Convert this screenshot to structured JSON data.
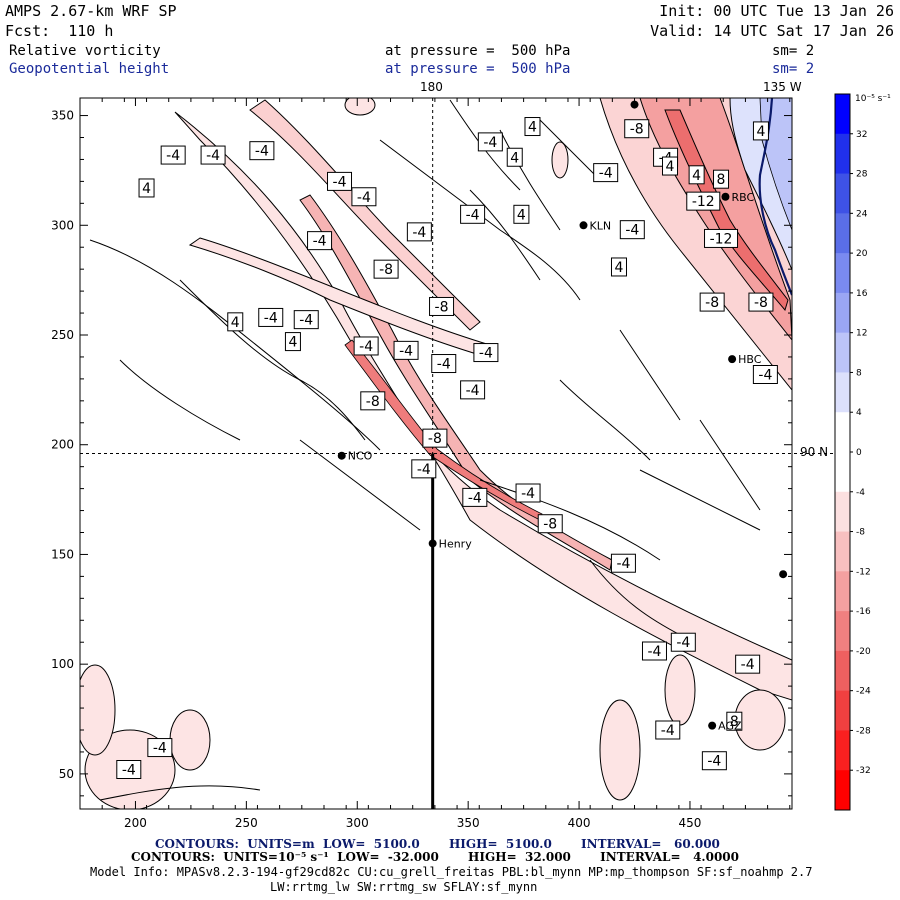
{
  "header": {
    "model_title": "AMPS 2.67-km WRF SP",
    "forecast": "Fcst:  110 h",
    "init": "Init: 00 UTC Tue 13 Jan 26",
    "valid": "Valid: 14 UTC Sat 17 Jan 26",
    "field1": {
      "name": "Relative vorticity",
      "level": "at pressure =  500 hPa",
      "smooth": "sm= 2"
    },
    "field2": {
      "name": "Geopotential height",
      "level": "at pressure =  500 hPa",
      "smooth": "sm= 2"
    }
  },
  "map_labels": {
    "lon_180": "180",
    "lon_135w": "135 W",
    "lat_90n": "90 N"
  },
  "stations": [
    {
      "name": "KLN",
      "x": 402,
      "y": 300
    },
    {
      "name": "RBC",
      "x": 466,
      "y": 313
    },
    {
      "name": "HBC",
      "x": 469,
      "y": 239
    },
    {
      "name": "NCO",
      "x": 293,
      "y": 195
    },
    {
      "name": "Henry",
      "x": 334,
      "y": 155
    },
    {
      "name": "AGZ",
      "x": 460,
      "y": 72
    },
    {
      "name": "",
      "x": 425,
      "y": 355
    },
    {
      "name": "",
      "x": 492,
      "y": 141
    }
  ],
  "contour_labels": [
    {
      "t": "-4",
      "x": 217,
      "y": 332
    },
    {
      "t": "-4",
      "x": 257,
      "y": 334
    },
    {
      "t": "-4",
      "x": 235,
      "y": 332
    },
    {
      "t": "4",
      "x": 205,
      "y": 317
    },
    {
      "t": "-4",
      "x": 292,
      "y": 320
    },
    {
      "t": "-4",
      "x": 303,
      "y": 313
    },
    {
      "t": "-4",
      "x": 328,
      "y": 297
    },
    {
      "t": "-4",
      "x": 283,
      "y": 293
    },
    {
      "t": "-8",
      "x": 313,
      "y": 280
    },
    {
      "t": "-8",
      "x": 338,
      "y": 263
    },
    {
      "t": "4",
      "x": 245,
      "y": 256
    },
    {
      "t": "-4",
      "x": 261,
      "y": 258
    },
    {
      "t": "-4",
      "x": 277,
      "y": 257
    },
    {
      "t": "4",
      "x": 271,
      "y": 247
    },
    {
      "t": "-4",
      "x": 304,
      "y": 245
    },
    {
      "t": "-4",
      "x": 322,
      "y": 243
    },
    {
      "t": "-4",
      "x": 339,
      "y": 237
    },
    {
      "t": "-4",
      "x": 358,
      "y": 242
    },
    {
      "t": "-4",
      "x": 352,
      "y": 225
    },
    {
      "t": "-8",
      "x": 307,
      "y": 220
    },
    {
      "t": "-8",
      "x": 335,
      "y": 203
    },
    {
      "t": "-4",
      "x": 330,
      "y": 189
    },
    {
      "t": "-4",
      "x": 353,
      "y": 176
    },
    {
      "t": "-4",
      "x": 377,
      "y": 178
    },
    {
      "t": "-8",
      "x": 387,
      "y": 164
    },
    {
      "t": "-4",
      "x": 420,
      "y": 146
    },
    {
      "t": "-4",
      "x": 447,
      "y": 110
    },
    {
      "t": "-4",
      "x": 434,
      "y": 106
    },
    {
      "t": "-4",
      "x": 476,
      "y": 100
    },
    {
      "t": "-4",
      "x": 440,
      "y": 70
    },
    {
      "t": "8",
      "x": 470,
      "y": 74
    },
    {
      "t": "-4",
      "x": 461,
      "y": 56
    },
    {
      "t": "-4",
      "x": 211,
      "y": 62
    },
    {
      "t": "-4",
      "x": 197,
      "y": 52
    },
    {
      "t": "-4",
      "x": 360,
      "y": 338
    },
    {
      "t": "4",
      "x": 379,
      "y": 345
    },
    {
      "t": "4",
      "x": 371,
      "y": 331
    },
    {
      "t": "4",
      "x": 374,
      "y": 305
    },
    {
      "t": "-4",
      "x": 352,
      "y": 305
    },
    {
      "t": "-8",
      "x": 426,
      "y": 344
    },
    {
      "t": "-4",
      "x": 439,
      "y": 331
    },
    {
      "t": "-4",
      "x": 412,
      "y": 324
    },
    {
      "t": "4",
      "x": 441,
      "y": 327
    },
    {
      "t": "4",
      "x": 453,
      "y": 323
    },
    {
      "t": "-4",
      "x": 424,
      "y": 298
    },
    {
      "t": "4",
      "x": 418,
      "y": 281
    },
    {
      "t": "-12",
      "x": 456,
      "y": 311
    },
    {
      "t": "-12",
      "x": 464,
      "y": 294
    },
    {
      "t": "-8",
      "x": 460,
      "y": 265
    },
    {
      "t": "-8",
      "x": 482,
      "y": 265
    },
    {
      "t": "-4",
      "x": 484,
      "y": 232
    },
    {
      "t": "4",
      "x": 482,
      "y": 343
    },
    {
      "t": "8",
      "x": 464,
      "y": 321
    }
  ],
  "footer": {
    "contours1": "CONTOURS:  UNITS=m  LOW=  5100.0       HIGH=  5100.0       INTERVAL=   60.000",
    "contours2": "CONTOURS:  UNITS=10⁻⁵ s⁻¹  LOW=  -32.000       HIGH=  32.000       INTERVAL=   4.0000",
    "model_info": "Model Info: MPASv8.2.3-194-gf29cd82c CU:cu_grell_freitas PBL:bl_mynn MP:mp_thompson SF:sf_noahmp 2.7",
    "physics": "LW:rrtmg_lw SW:rrtmg_sw SFLAY:sf_mynn"
  },
  "chart_data": {
    "type": "contour",
    "title": "Relative vorticity / Geopotential height at 500 hPa",
    "x_ticks": [
      200,
      250,
      300,
      350,
      400,
      450
    ],
    "y_ticks": [
      50,
      100,
      150,
      200,
      250,
      300,
      350
    ],
    "xlim": [
      175,
      496
    ],
    "ylim": [
      34,
      358
    ],
    "ref_lines": {
      "x": 334,
      "y": 196
    },
    "cross_section": {
      "x": 334,
      "y_from": 34,
      "y_to": 196
    },
    "colorbar": {
      "unit": "10⁻⁵ s⁻¹",
      "labels": [
        32,
        28,
        24,
        20,
        16,
        12,
        8,
        4,
        0,
        -4,
        -8,
        -12,
        -16,
        -20,
        -24,
        -28,
        -32
      ],
      "colors": [
        "#0000ff",
        "#2030ec",
        "#3e52e6",
        "#5a6ee8",
        "#7a8af0",
        "#9aa6f4",
        "#bcc4f8",
        "#dce0fc",
        "#ffffff",
        "#ffffff",
        "#fce0e0",
        "#f8c0c0",
        "#f4a0a0",
        "#f08080",
        "#ee6060",
        "#f04040",
        "#fa2020",
        "#ff0000"
      ]
    }
  }
}
